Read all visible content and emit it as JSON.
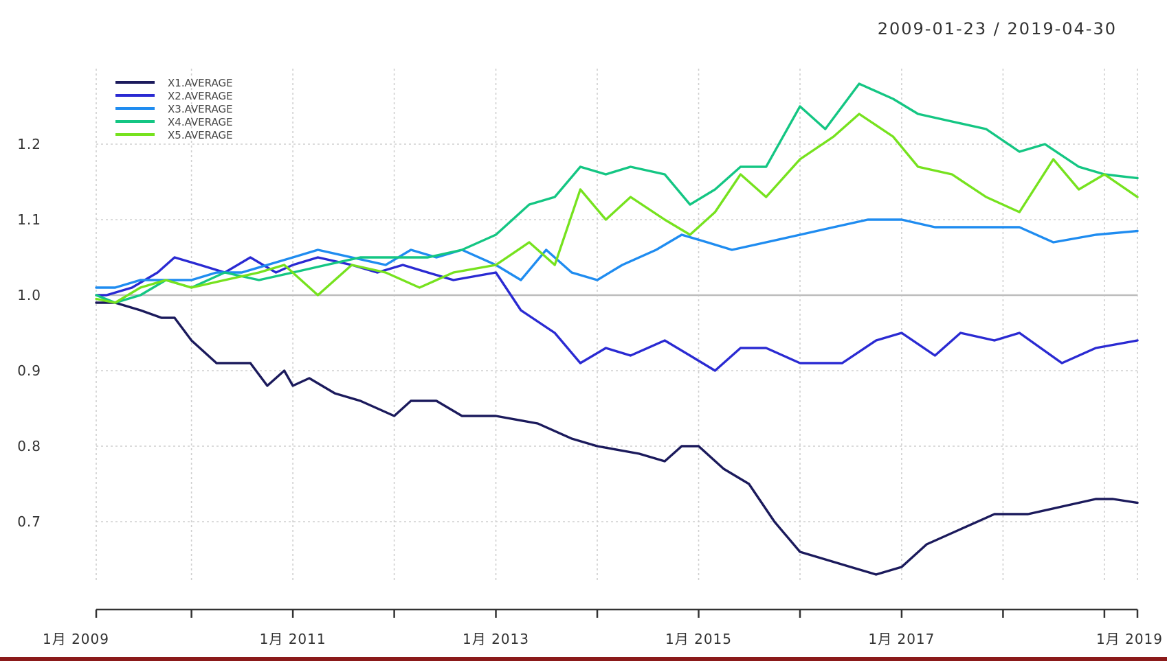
{
  "chart_data": {
    "type": "line",
    "date_range_label": "2009-01-23 / 2019-04-30",
    "x_range": [
      "2009-01-23",
      "2019-04-30"
    ],
    "ylim": [
      0.62,
      1.3
    ],
    "y_ticks": [
      {
        "value": 0.7,
        "label": "0.7"
      },
      {
        "value": 0.8,
        "label": "0.8"
      },
      {
        "value": 0.9,
        "label": "0.9"
      },
      {
        "value": 1.0,
        "label": "1.0"
      },
      {
        "value": 1.1,
        "label": "1.1"
      },
      {
        "value": 1.2,
        "label": "1.2"
      }
    ],
    "x_ticks": [
      {
        "date": "2009-01-23",
        "label": "1月 2009"
      },
      {
        "date": "2011-01-01",
        "label": "1月 2011"
      },
      {
        "date": "2013-01-01",
        "label": "1月 2013"
      },
      {
        "date": "2015-01-01",
        "label": "1月 2015"
      },
      {
        "date": "2017-01-01",
        "label": "1月 2017"
      },
      {
        "date": "2019-01-01",
        "label": "1月 2019"
      }
    ],
    "x_minor_ticks": [
      "2010-01-01",
      "2012-01-01",
      "2014-01-01",
      "2016-01-01",
      "2018-01-01",
      "2019-04-30"
    ],
    "reference_line": 1.0,
    "grid": true,
    "legend_position": "top-left",
    "series": [
      {
        "name": "X1.AVERAGE",
        "color": "#1b1a5c",
        "points": [
          [
            "2009-01-23",
            0.99
          ],
          [
            "2009-04-01",
            0.99
          ],
          [
            "2009-07-01",
            0.98
          ],
          [
            "2009-09-15",
            0.97
          ],
          [
            "2009-11-01",
            0.97
          ],
          [
            "2010-01-01",
            0.94
          ],
          [
            "2010-04-01",
            0.91
          ],
          [
            "2010-08-01",
            0.91
          ],
          [
            "2010-10-01",
            0.88
          ],
          [
            "2010-12-01",
            0.9
          ],
          [
            "2011-01-01",
            0.88
          ],
          [
            "2011-03-01",
            0.89
          ],
          [
            "2011-06-01",
            0.87
          ],
          [
            "2011-09-01",
            0.86
          ],
          [
            "2011-11-01",
            0.85
          ],
          [
            "2012-01-01",
            0.84
          ],
          [
            "2012-03-01",
            0.86
          ],
          [
            "2012-06-01",
            0.86
          ],
          [
            "2012-09-01",
            0.84
          ],
          [
            "2013-01-01",
            0.84
          ],
          [
            "2013-06-01",
            0.83
          ],
          [
            "2013-10-01",
            0.81
          ],
          [
            "2014-01-01",
            0.8
          ],
          [
            "2014-06-01",
            0.79
          ],
          [
            "2014-09-01",
            0.78
          ],
          [
            "2014-11-01",
            0.8
          ],
          [
            "2015-01-01",
            0.8
          ],
          [
            "2015-04-01",
            0.77
          ],
          [
            "2015-07-01",
            0.75
          ],
          [
            "2015-10-01",
            0.7
          ],
          [
            "2016-01-01",
            0.66
          ],
          [
            "2016-04-01",
            0.65
          ],
          [
            "2016-07-01",
            0.64
          ],
          [
            "2016-10-01",
            0.63
          ],
          [
            "2017-01-01",
            0.64
          ],
          [
            "2017-04-01",
            0.67
          ],
          [
            "2017-08-01",
            0.69
          ],
          [
            "2017-12-01",
            0.71
          ],
          [
            "2018-04-01",
            0.71
          ],
          [
            "2018-08-01",
            0.72
          ],
          [
            "2018-12-01",
            0.73
          ],
          [
            "2019-02-01",
            0.73
          ],
          [
            "2019-04-30",
            0.725
          ]
        ]
      },
      {
        "name": "X2.AVERAGE",
        "color": "#2a2ad2",
        "points": [
          [
            "2009-01-23",
            1.0
          ],
          [
            "2009-03-01",
            1.0
          ],
          [
            "2009-06-01",
            1.01
          ],
          [
            "2009-09-01",
            1.03
          ],
          [
            "2009-11-01",
            1.05
          ],
          [
            "2010-02-01",
            1.04
          ],
          [
            "2010-05-01",
            1.03
          ],
          [
            "2010-08-01",
            1.05
          ],
          [
            "2010-11-01",
            1.03
          ],
          [
            "2011-01-01",
            1.04
          ],
          [
            "2011-04-01",
            1.05
          ],
          [
            "2011-08-01",
            1.04
          ],
          [
            "2011-11-01",
            1.03
          ],
          [
            "2012-02-01",
            1.04
          ],
          [
            "2012-05-01",
            1.03
          ],
          [
            "2012-08-01",
            1.02
          ],
          [
            "2013-01-01",
            1.03
          ],
          [
            "2013-04-01",
            0.98
          ],
          [
            "2013-08-01",
            0.95
          ],
          [
            "2013-11-01",
            0.91
          ],
          [
            "2014-02-01",
            0.93
          ],
          [
            "2014-05-01",
            0.92
          ],
          [
            "2014-09-01",
            0.94
          ],
          [
            "2014-12-01",
            0.92
          ],
          [
            "2015-03-01",
            0.9
          ],
          [
            "2015-06-01",
            0.93
          ],
          [
            "2015-09-01",
            0.93
          ],
          [
            "2016-01-01",
            0.91
          ],
          [
            "2016-06-01",
            0.91
          ],
          [
            "2016-10-01",
            0.94
          ],
          [
            "2017-01-01",
            0.95
          ],
          [
            "2017-05-01",
            0.92
          ],
          [
            "2017-08-01",
            0.95
          ],
          [
            "2017-12-01",
            0.94
          ],
          [
            "2018-03-01",
            0.95
          ],
          [
            "2018-08-01",
            0.91
          ],
          [
            "2018-12-01",
            0.93
          ],
          [
            "2019-04-30",
            0.94
          ]
        ]
      },
      {
        "name": "X3.AVERAGE",
        "color": "#1f8cf0",
        "points": [
          [
            "2009-01-23",
            1.01
          ],
          [
            "2009-04-01",
            1.01
          ],
          [
            "2009-07-01",
            1.02
          ],
          [
            "2009-10-01",
            1.02
          ],
          [
            "2010-01-01",
            1.02
          ],
          [
            "2010-04-01",
            1.03
          ],
          [
            "2010-07-01",
            1.03
          ],
          [
            "2010-10-01",
            1.04
          ],
          [
            "2011-01-01",
            1.05
          ],
          [
            "2011-04-01",
            1.06
          ],
          [
            "2011-08-01",
            1.05
          ],
          [
            "2011-12-01",
            1.04
          ],
          [
            "2012-03-01",
            1.06
          ],
          [
            "2012-06-01",
            1.05
          ],
          [
            "2012-09-01",
            1.06
          ],
          [
            "2013-01-01",
            1.04
          ],
          [
            "2013-04-01",
            1.02
          ],
          [
            "2013-07-01",
            1.06
          ],
          [
            "2013-10-01",
            1.03
          ],
          [
            "2014-01-01",
            1.02
          ],
          [
            "2014-04-01",
            1.04
          ],
          [
            "2014-08-01",
            1.06
          ],
          [
            "2014-11-01",
            1.08
          ],
          [
            "2015-02-01",
            1.07
          ],
          [
            "2015-05-01",
            1.06
          ],
          [
            "2015-09-01",
            1.07
          ],
          [
            "2016-01-01",
            1.08
          ],
          [
            "2016-05-01",
            1.09
          ],
          [
            "2016-09-01",
            1.1
          ],
          [
            "2017-01-01",
            1.1
          ],
          [
            "2017-05-01",
            1.09
          ],
          [
            "2017-10-01",
            1.09
          ],
          [
            "2018-03-01",
            1.09
          ],
          [
            "2018-07-01",
            1.07
          ],
          [
            "2018-12-01",
            1.08
          ],
          [
            "2019-04-30",
            1.085
          ]
        ]
      },
      {
        "name": "X4.AVERAGE",
        "color": "#14c683",
        "points": [
          [
            "2009-01-23",
            1.0
          ],
          [
            "2009-04-01",
            0.99
          ],
          [
            "2009-07-01",
            1.0
          ],
          [
            "2009-10-01",
            1.02
          ],
          [
            "2010-01-01",
            1.01
          ],
          [
            "2010-05-01",
            1.03
          ],
          [
            "2010-09-01",
            1.02
          ],
          [
            "2011-01-01",
            1.03
          ],
          [
            "2011-05-01",
            1.04
          ],
          [
            "2011-09-01",
            1.05
          ],
          [
            "2012-01-01",
            1.05
          ],
          [
            "2012-05-01",
            1.05
          ],
          [
            "2012-09-01",
            1.06
          ],
          [
            "2013-01-01",
            1.08
          ],
          [
            "2013-05-01",
            1.12
          ],
          [
            "2013-08-01",
            1.13
          ],
          [
            "2013-11-01",
            1.17
          ],
          [
            "2014-02-01",
            1.16
          ],
          [
            "2014-05-01",
            1.17
          ],
          [
            "2014-09-01",
            1.16
          ],
          [
            "2014-12-01",
            1.12
          ],
          [
            "2015-03-01",
            1.14
          ],
          [
            "2015-06-01",
            1.17
          ],
          [
            "2015-09-01",
            1.17
          ],
          [
            "2016-01-01",
            1.25
          ],
          [
            "2016-04-01",
            1.22
          ],
          [
            "2016-08-01",
            1.28
          ],
          [
            "2016-12-01",
            1.26
          ],
          [
            "2017-03-01",
            1.24
          ],
          [
            "2017-07-01",
            1.23
          ],
          [
            "2017-11-01",
            1.22
          ],
          [
            "2018-03-01",
            1.19
          ],
          [
            "2018-06-01",
            1.2
          ],
          [
            "2018-10-01",
            1.17
          ],
          [
            "2019-01-01",
            1.16
          ],
          [
            "2019-04-30",
            1.155
          ]
        ]
      },
      {
        "name": "X5.AVERAGE",
        "color": "#76e21e",
        "points": [
          [
            "2009-01-23",
            0.995
          ],
          [
            "2009-04-01",
            0.99
          ],
          [
            "2009-07-01",
            1.01
          ],
          [
            "2009-10-01",
            1.02
          ],
          [
            "2010-01-01",
            1.01
          ],
          [
            "2010-05-01",
            1.02
          ],
          [
            "2010-09-01",
            1.03
          ],
          [
            "2010-12-01",
            1.04
          ],
          [
            "2011-04-01",
            1.0
          ],
          [
            "2011-08-01",
            1.04
          ],
          [
            "2011-12-01",
            1.03
          ],
          [
            "2012-04-01",
            1.01
          ],
          [
            "2012-08-01",
            1.03
          ],
          [
            "2013-01-01",
            1.04
          ],
          [
            "2013-05-01",
            1.07
          ],
          [
            "2013-08-01",
            1.04
          ],
          [
            "2013-11-01",
            1.14
          ],
          [
            "2014-02-01",
            1.1
          ],
          [
            "2014-05-01",
            1.13
          ],
          [
            "2014-09-01",
            1.1
          ],
          [
            "2014-12-01",
            1.08
          ],
          [
            "2015-03-01",
            1.11
          ],
          [
            "2015-06-01",
            1.16
          ],
          [
            "2015-09-01",
            1.13
          ],
          [
            "2016-01-01",
            1.18
          ],
          [
            "2016-05-01",
            1.21
          ],
          [
            "2016-08-01",
            1.24
          ],
          [
            "2016-12-01",
            1.21
          ],
          [
            "2017-03-01",
            1.17
          ],
          [
            "2017-07-01",
            1.16
          ],
          [
            "2017-11-01",
            1.13
          ],
          [
            "2018-03-01",
            1.11
          ],
          [
            "2018-07-01",
            1.18
          ],
          [
            "2018-10-01",
            1.14
          ],
          [
            "2019-01-01",
            1.16
          ],
          [
            "2019-04-30",
            1.13
          ]
        ]
      }
    ]
  },
  "colors": {
    "grid": "#cfcfcf",
    "reference_line": "#bdbdbd",
    "bottom_bar": "#8b1a1a"
  }
}
